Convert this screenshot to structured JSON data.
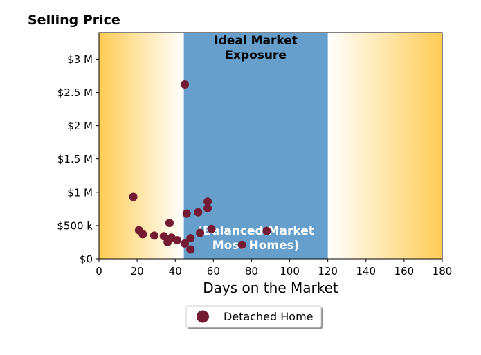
{
  "chart_data": {
    "type": "scatter",
    "ylabel": "Selling Price",
    "xlabel": "Days on the Market",
    "xlim": [
      0,
      180
    ],
    "ylim": [
      0,
      3400000
    ],
    "x_ticks": [
      0,
      20,
      40,
      60,
      80,
      100,
      120,
      140,
      160,
      180
    ],
    "x_tick_labels": [
      "0",
      "20",
      "40",
      "60",
      "80",
      "100",
      "120",
      "140",
      "160",
      "180"
    ],
    "y_ticks": [
      0,
      500000,
      1000000,
      1500000,
      2000000,
      2500000,
      3000000
    ],
    "y_tick_labels": [
      "$0",
      "$500 k",
      "$1 M",
      "$1.5 M",
      "$2 M",
      "$2.5 M",
      "$3 M"
    ],
    "grid": false,
    "legend_position": "bottom-center",
    "bands": [
      {
        "x_start": 0,
        "x_end": 44.5,
        "fill": "gradient",
        "color": "#FFCC55",
        "direction": "fade-right"
      },
      {
        "x_start": 44.5,
        "x_end": 120,
        "fill": "solid",
        "color": "#669FCC",
        "label_top": [
          "Ideal Market",
          "Exposure"
        ],
        "label_bottom": [
          "(Balanced Market",
          "Most Homes)"
        ]
      },
      {
        "x_start": 120,
        "x_end": 180,
        "fill": "gradient",
        "color": "#FFCC55",
        "direction": "fade-left"
      }
    ],
    "series": [
      {
        "name": "Detached Home",
        "color": "#751A33",
        "points": [
          {
            "x": 18,
            "y": 930000
          },
          {
            "x": 21,
            "y": 430000
          },
          {
            "x": 23,
            "y": 370000
          },
          {
            "x": 29,
            "y": 350000
          },
          {
            "x": 34,
            "y": 340000
          },
          {
            "x": 36,
            "y": 250000
          },
          {
            "x": 37,
            "y": 540000
          },
          {
            "x": 38,
            "y": 320000
          },
          {
            "x": 41,
            "y": 280000
          },
          {
            "x": 45,
            "y": 2620000
          },
          {
            "x": 45,
            "y": 230000
          },
          {
            "x": 46,
            "y": 680000
          },
          {
            "x": 48,
            "y": 140000
          },
          {
            "x": 48,
            "y": 310000
          },
          {
            "x": 52,
            "y": 700000
          },
          {
            "x": 53,
            "y": 390000
          },
          {
            "x": 57,
            "y": 760000
          },
          {
            "x": 57,
            "y": 860000
          },
          {
            "x": 59,
            "y": 450000
          },
          {
            "x": 75,
            "y": 210000
          },
          {
            "x": 88,
            "y": 420000
          }
        ]
      }
    ]
  }
}
